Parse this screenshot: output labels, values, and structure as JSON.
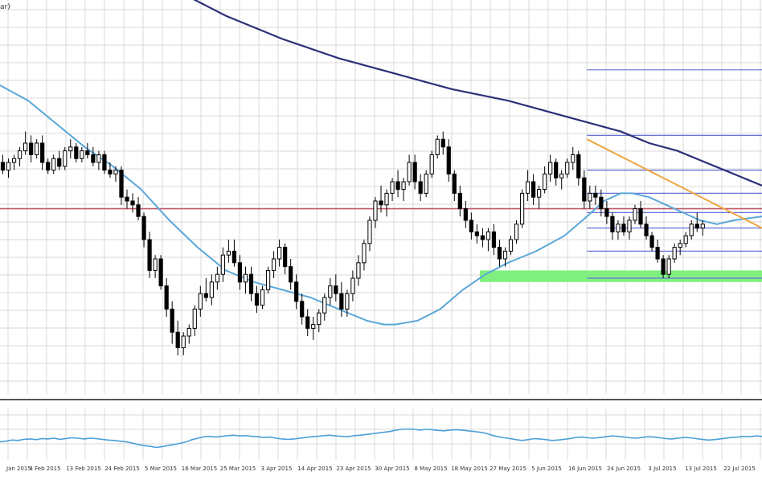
{
  "window": {
    "corner_label": "ar)"
  },
  "colors": {
    "grid": "#d9d9d9",
    "ma_short": "#5aa7d8",
    "ma_long": "#2c2f78",
    "resistance": "#c0586a",
    "trendline": "#f0a540",
    "fib_levels": "#6670d8",
    "support_zone": "#7ff07f",
    "oscillator": "#4a9fd8",
    "candle": "#000000",
    "separator": "#555555"
  },
  "chart_data": {
    "type": "candlestick",
    "x_labels": [
      "Jan 2015",
      "4 Feb 2015",
      "13 Feb 2015",
      "24 Feb 2015",
      "5 Mar 2015",
      "16 Mar 2015",
      "25 Mar 2015",
      "3 Apr 2015",
      "14 Apr 2015",
      "23 Apr 2015",
      "30 Apr 2015",
      "8 May 2015",
      "18 May 2015",
      "27 May 2015",
      "5 Jun 2015",
      "16 Jun 2015",
      "24 Jun 2015",
      "3 Jul 2015",
      "13 Jul 2015",
      "22 Jul 2015"
    ],
    "x_range": [
      0,
      135
    ],
    "y_range": [
      0,
      100
    ],
    "candles": [
      [
        0,
        60,
        62,
        57,
        58
      ],
      [
        1,
        58,
        61,
        56,
        60
      ],
      [
        2,
        60,
        62,
        58,
        61
      ],
      [
        3,
        61,
        64,
        59,
        63
      ],
      [
        4,
        63,
        68,
        62,
        65
      ],
      [
        5,
        65,
        67,
        60,
        62
      ],
      [
        6,
        62,
        66,
        61,
        65
      ],
      [
        7,
        65,
        67,
        58,
        60
      ],
      [
        8,
        60,
        61,
        57,
        58
      ],
      [
        9,
        58,
        62,
        57,
        61
      ],
      [
        10,
        61,
        63,
        58,
        59
      ],
      [
        11,
        59,
        64,
        58,
        63
      ],
      [
        12,
        63,
        66,
        61,
        64
      ],
      [
        13,
        64,
        65,
        60,
        61
      ],
      [
        14,
        61,
        64,
        60,
        63
      ],
      [
        15,
        63,
        65,
        61,
        62
      ],
      [
        16,
        62,
        64,
        59,
        60
      ],
      [
        17,
        60,
        63,
        58,
        62
      ],
      [
        18,
        62,
        63,
        57,
        58
      ],
      [
        19,
        58,
        60,
        56,
        57
      ],
      [
        20,
        57,
        59,
        55,
        58
      ],
      [
        21,
        58,
        59,
        49,
        51
      ],
      [
        22,
        51,
        53,
        48,
        50
      ],
      [
        23,
        50,
        52,
        47,
        49
      ],
      [
        24,
        49,
        51,
        45,
        46
      ],
      [
        25,
        46,
        47,
        38,
        40
      ],
      [
        26,
        40,
        42,
        30,
        32
      ],
      [
        27,
        32,
        36,
        30,
        35
      ],
      [
        28,
        35,
        36,
        27,
        28
      ],
      [
        29,
        28,
        30,
        20,
        22
      ],
      [
        30,
        22,
        24,
        13,
        16
      ],
      [
        31,
        16,
        19,
        10,
        12
      ],
      [
        32,
        12,
        16,
        10,
        15
      ],
      [
        33,
        15,
        18,
        13,
        17
      ],
      [
        34,
        17,
        23,
        15,
        22
      ],
      [
        35,
        22,
        28,
        20,
        26
      ],
      [
        36,
        26,
        30,
        24,
        25
      ],
      [
        37,
        25,
        31,
        23,
        29
      ],
      [
        38,
        29,
        33,
        27,
        31
      ],
      [
        39,
        31,
        38,
        29,
        36
      ],
      [
        40,
        36,
        40,
        34,
        37
      ],
      [
        41,
        37,
        40,
        33,
        34
      ],
      [
        42,
        34,
        36,
        27,
        29
      ],
      [
        43,
        29,
        33,
        26,
        31
      ],
      [
        44,
        31,
        33,
        24,
        26
      ],
      [
        45,
        26,
        28,
        21,
        23
      ],
      [
        46,
        23,
        28,
        22,
        27
      ],
      [
        47,
        27,
        33,
        26,
        32
      ],
      [
        48,
        32,
        37,
        30,
        35
      ],
      [
        49,
        35,
        40,
        33,
        38
      ],
      [
        50,
        38,
        39,
        31,
        33
      ],
      [
        51,
        33,
        35,
        27,
        29
      ],
      [
        52,
        29,
        31,
        22,
        24
      ],
      [
        53,
        24,
        26,
        18,
        20
      ],
      [
        54,
        20,
        22,
        15,
        17
      ],
      [
        55,
        17,
        20,
        14,
        18
      ],
      [
        56,
        18,
        22,
        16,
        21
      ],
      [
        57,
        21,
        26,
        19,
        25
      ],
      [
        58,
        25,
        30,
        23,
        28
      ],
      [
        59,
        28,
        31,
        24,
        26
      ],
      [
        60,
        26,
        29,
        20,
        22
      ],
      [
        61,
        22,
        27,
        20,
        26
      ],
      [
        62,
        26,
        32,
        24,
        30
      ],
      [
        63,
        30,
        36,
        28,
        34
      ],
      [
        64,
        34,
        40,
        32,
        39
      ],
      [
        65,
        39,
        46,
        37,
        45
      ],
      [
        66,
        45,
        51,
        43,
        50
      ],
      [
        67,
        50,
        54,
        47,
        49
      ],
      [
        68,
        49,
        53,
        46,
        52
      ],
      [
        69,
        52,
        56,
        50,
        55
      ],
      [
        70,
        55,
        58,
        51,
        53
      ],
      [
        71,
        53,
        56,
        50,
        55
      ],
      [
        72,
        55,
        62,
        54,
        60
      ],
      [
        73,
        60,
        62,
        53,
        55
      ],
      [
        74,
        55,
        57,
        50,
        52
      ],
      [
        75,
        52,
        58,
        51,
        57
      ],
      [
        76,
        57,
        63,
        56,
        62
      ],
      [
        77,
        62,
        67,
        61,
        66
      ],
      [
        78,
        66,
        68,
        62,
        64
      ],
      [
        79,
        64,
        66,
        55,
        57
      ],
      [
        80,
        57,
        58,
        50,
        52
      ],
      [
        81,
        52,
        54,
        46,
        48
      ],
      [
        82,
        48,
        50,
        43,
        45
      ],
      [
        83,
        45,
        47,
        40,
        42
      ],
      [
        84,
        42,
        44,
        39,
        41
      ],
      [
        85,
        41,
        43,
        38,
        40
      ],
      [
        86,
        40,
        43,
        37,
        42
      ],
      [
        87,
        42,
        44,
        36,
        38
      ],
      [
        88,
        38,
        40,
        33,
        35
      ],
      [
        89,
        35,
        38,
        33,
        37
      ],
      [
        90,
        37,
        41,
        36,
        40
      ],
      [
        91,
        40,
        45,
        39,
        44
      ],
      [
        92,
        44,
        53,
        43,
        52
      ],
      [
        93,
        52,
        58,
        50,
        55
      ],
      [
        94,
        55,
        57,
        49,
        51
      ],
      [
        95,
        51,
        54,
        48,
        53
      ],
      [
        96,
        53,
        59,
        52,
        57
      ],
      [
        97,
        57,
        62,
        55,
        60
      ],
      [
        98,
        60,
        61,
        54,
        56
      ],
      [
        99,
        56,
        58,
        53,
        57
      ],
      [
        100,
        57,
        61,
        56,
        60
      ],
      [
        101,
        60,
        64,
        58,
        62
      ],
      [
        102,
        62,
        63,
        54,
        56
      ],
      [
        103,
        56,
        58,
        48,
        50
      ],
      [
        104,
        50,
        54,
        48,
        52
      ],
      [
        105,
        52,
        54,
        49,
        51
      ],
      [
        106,
        51,
        53,
        46,
        48
      ],
      [
        107,
        48,
        50,
        44,
        46
      ],
      [
        108,
        46,
        47,
        40,
        42
      ],
      [
        109,
        42,
        45,
        40,
        44
      ],
      [
        110,
        44,
        46,
        41,
        42
      ],
      [
        111,
        42,
        46,
        40,
        45
      ],
      [
        112,
        45,
        49,
        44,
        48
      ],
      [
        113,
        48,
        50,
        43,
        44
      ],
      [
        114,
        44,
        46,
        40,
        41
      ],
      [
        115,
        41,
        42,
        37,
        38
      ],
      [
        116,
        38,
        40,
        34,
        35
      ],
      [
        117,
        35,
        36,
        30,
        31
      ],
      [
        118,
        31,
        36,
        30,
        35
      ],
      [
        119,
        35,
        39,
        34,
        38
      ],
      [
        120,
        38,
        40,
        36,
        39
      ],
      [
        121,
        39,
        42,
        38,
        41
      ],
      [
        122,
        41,
        45,
        40,
        44
      ],
      [
        123,
        44,
        47,
        42,
        43
      ],
      [
        124,
        43,
        45,
        41,
        44
      ]
    ],
    "ma_short": [
      [
        0,
        80
      ],
      [
        5,
        76
      ],
      [
        10,
        70
      ],
      [
        15,
        64
      ],
      [
        20,
        59
      ],
      [
        25,
        53
      ],
      [
        30,
        45
      ],
      [
        35,
        38
      ],
      [
        40,
        32
      ],
      [
        45,
        29
      ],
      [
        50,
        27
      ],
      [
        55,
        25
      ],
      [
        60,
        22
      ],
      [
        65,
        19
      ],
      [
        68,
        18
      ],
      [
        70,
        18
      ],
      [
        74,
        19
      ],
      [
        78,
        22
      ],
      [
        82,
        27
      ],
      [
        86,
        31
      ],
      [
        90,
        34
      ],
      [
        95,
        37
      ],
      [
        100,
        41
      ],
      [
        104,
        46
      ],
      [
        107,
        50
      ],
      [
        110,
        52
      ],
      [
        112,
        52
      ],
      [
        115,
        51
      ],
      [
        118,
        49
      ],
      [
        121,
        47
      ],
      [
        124,
        45
      ],
      [
        127,
        44
      ],
      [
        130,
        45
      ],
      [
        135,
        46
      ]
    ],
    "ma_long": [
      [
        32,
        104
      ],
      [
        40,
        98
      ],
      [
        50,
        92
      ],
      [
        60,
        87
      ],
      [
        70,
        83
      ],
      [
        80,
        79
      ],
      [
        90,
        76
      ],
      [
        100,
        72
      ],
      [
        110,
        68
      ],
      [
        115,
        65
      ],
      [
        120,
        63
      ],
      [
        125,
        60
      ],
      [
        130,
        57
      ],
      [
        135,
        54
      ]
    ],
    "resistance_level": 48,
    "trendline": [
      [
        104,
        66
      ],
      [
        135,
        43
      ]
    ],
    "fib_levels": [
      {
        "y": 84,
        "x_start": 104,
        "x_end": 135
      },
      {
        "y": 67,
        "x_start": 104,
        "x_end": 135
      },
      {
        "y": 58,
        "x_start": 104,
        "x_end": 135
      },
      {
        "y": 52,
        "x_start": 104,
        "x_end": 135
      },
      {
        "y": 47,
        "x_start": 104,
        "x_end": 135
      },
      {
        "y": 43,
        "x_start": 104,
        "x_end": 135
      },
      {
        "y": 37,
        "x_start": 104,
        "x_end": 135
      },
      {
        "y": 30,
        "x_start": 104,
        "x_end": 135
      }
    ],
    "support_zone": {
      "y_low": 29,
      "y_high": 32,
      "x_start": 85,
      "x_end": 135
    },
    "oscillator": {
      "y_range": [
        0,
        100
      ],
      "values": [
        40,
        42,
        45,
        44,
        47,
        48,
        46,
        49,
        48,
        50,
        47,
        49,
        51,
        50,
        48,
        50,
        49,
        47,
        45,
        44,
        42,
        40,
        37,
        33,
        30,
        28,
        25,
        27,
        30,
        33,
        36,
        40,
        46,
        50,
        54,
        55,
        53,
        55,
        57,
        58,
        56,
        57,
        55,
        54,
        52,
        53,
        50,
        48,
        47,
        48,
        50,
        52,
        54,
        55,
        57,
        58,
        56,
        55,
        54,
        57,
        58,
        60,
        62,
        64,
        66,
        68,
        72,
        74,
        75,
        74,
        72,
        74,
        73,
        71,
        70,
        72,
        73,
        72,
        70,
        68,
        66,
        63,
        58,
        54,
        51,
        49,
        46,
        44,
        46,
        49,
        48,
        46,
        44,
        45,
        47,
        49,
        52,
        53,
        51,
        50,
        52,
        54,
        56,
        55,
        53,
        51,
        50,
        52,
        54,
        53,
        51,
        49,
        48,
        50,
        52,
        51,
        49,
        47,
        45,
        46,
        48,
        50,
        52,
        53,
        55,
        54,
        56,
        55
      ]
    }
  }
}
